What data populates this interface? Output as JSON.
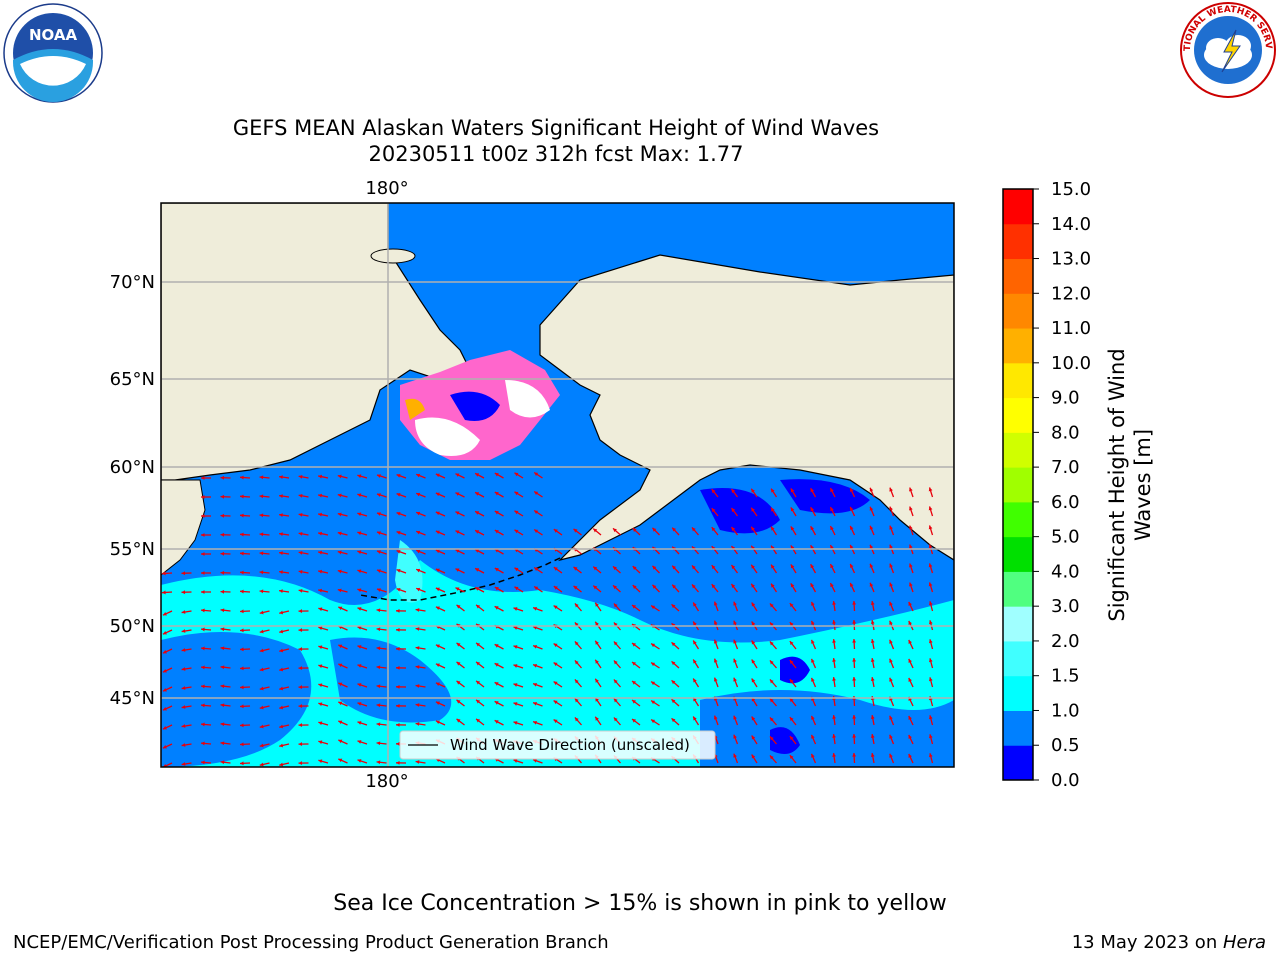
{
  "title": {
    "line1": "GEFS MEAN Alaskan Waters Significant Height of Wind Waves",
    "line2": "20230511 t00z 312h fcst   Max: 1.77"
  },
  "map": {
    "lon_labels": [
      "180°",
      "180°"
    ],
    "lat_labels": [
      "70°N",
      "65°N",
      "60°N",
      "55°N",
      "50°N",
      "45°N"
    ],
    "legend_label": "Wind Wave Direction (unscaled)",
    "land_color": "#efedda",
    "vector_color": "#e8000b"
  },
  "colorbar": {
    "label_line1": "Significant Height of Wind",
    "label_line2": "Waves [m]",
    "ticks": [
      "0.0",
      "0.5",
      "1.0",
      "1.5",
      "2.0",
      "3.0",
      "4.0",
      "5.0",
      "6.0",
      "7.0",
      "8.0",
      "9.0",
      "10.0",
      "11.0",
      "12.0",
      "13.0",
      "14.0",
      "15.0"
    ],
    "colors": [
      "#0000ff",
      "#0080ff",
      "#00ffff",
      "#40ffff",
      "#a0ffff",
      "#50ff80",
      "#00e000",
      "#40ff00",
      "#a0ff00",
      "#d0ff00",
      "#ffff00",
      "#ffe800",
      "#ffb000",
      "#ff8800",
      "#ff6400",
      "#ff3000",
      "#ff0000"
    ]
  },
  "note": "Sea Ice Concentration > 15% is shown in pink to yellow",
  "footer": {
    "left": "NCEP/EMC/Verification Post Processing Product Generation Branch",
    "right_date": "13 May 2023 on ",
    "right_host": "Hera"
  },
  "logos": {
    "noaa_text": "NOAA",
    "nws_text": "NATIONAL WEATHER SERVICE"
  }
}
